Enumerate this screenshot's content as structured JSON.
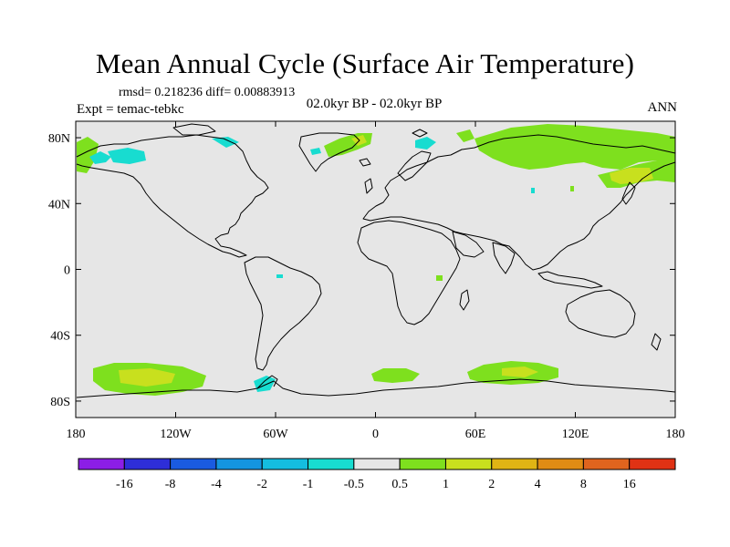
{
  "header": {
    "title": "Mean Annual Cycle (Surface Air Temperature)",
    "stats": "rmsd= 0.218236 diff= 0.00883913",
    "experiment": "Expt = temac-tebkc",
    "period": "02.0kyr BP - 02.0kyr BP",
    "season": "ANN"
  },
  "axes": {
    "lat_labels": [
      "80N",
      "40N",
      "0",
      "40S",
      "80S"
    ],
    "lon_labels": [
      "180",
      "120W",
      "60W",
      "0",
      "60E",
      "120E",
      "180"
    ]
  },
  "colorbar": {
    "labels": [
      "-16",
      "-8",
      "-4",
      "-2",
      "-1",
      "-0.5",
      "0.5",
      "1",
      "2",
      "4",
      "8",
      "16"
    ],
    "colors": [
      "#8c1ee6",
      "#2e2ed8",
      "#1a5be0",
      "#1495e0",
      "#14bde0",
      "#18dcd0",
      "#e6e6e6",
      "#7ee01e",
      "#c8e01e",
      "#e0b414",
      "#e08c14",
      "#e0641e",
      "#e03214"
    ]
  },
  "map": {
    "background_color": "#e6e6e6"
  }
}
